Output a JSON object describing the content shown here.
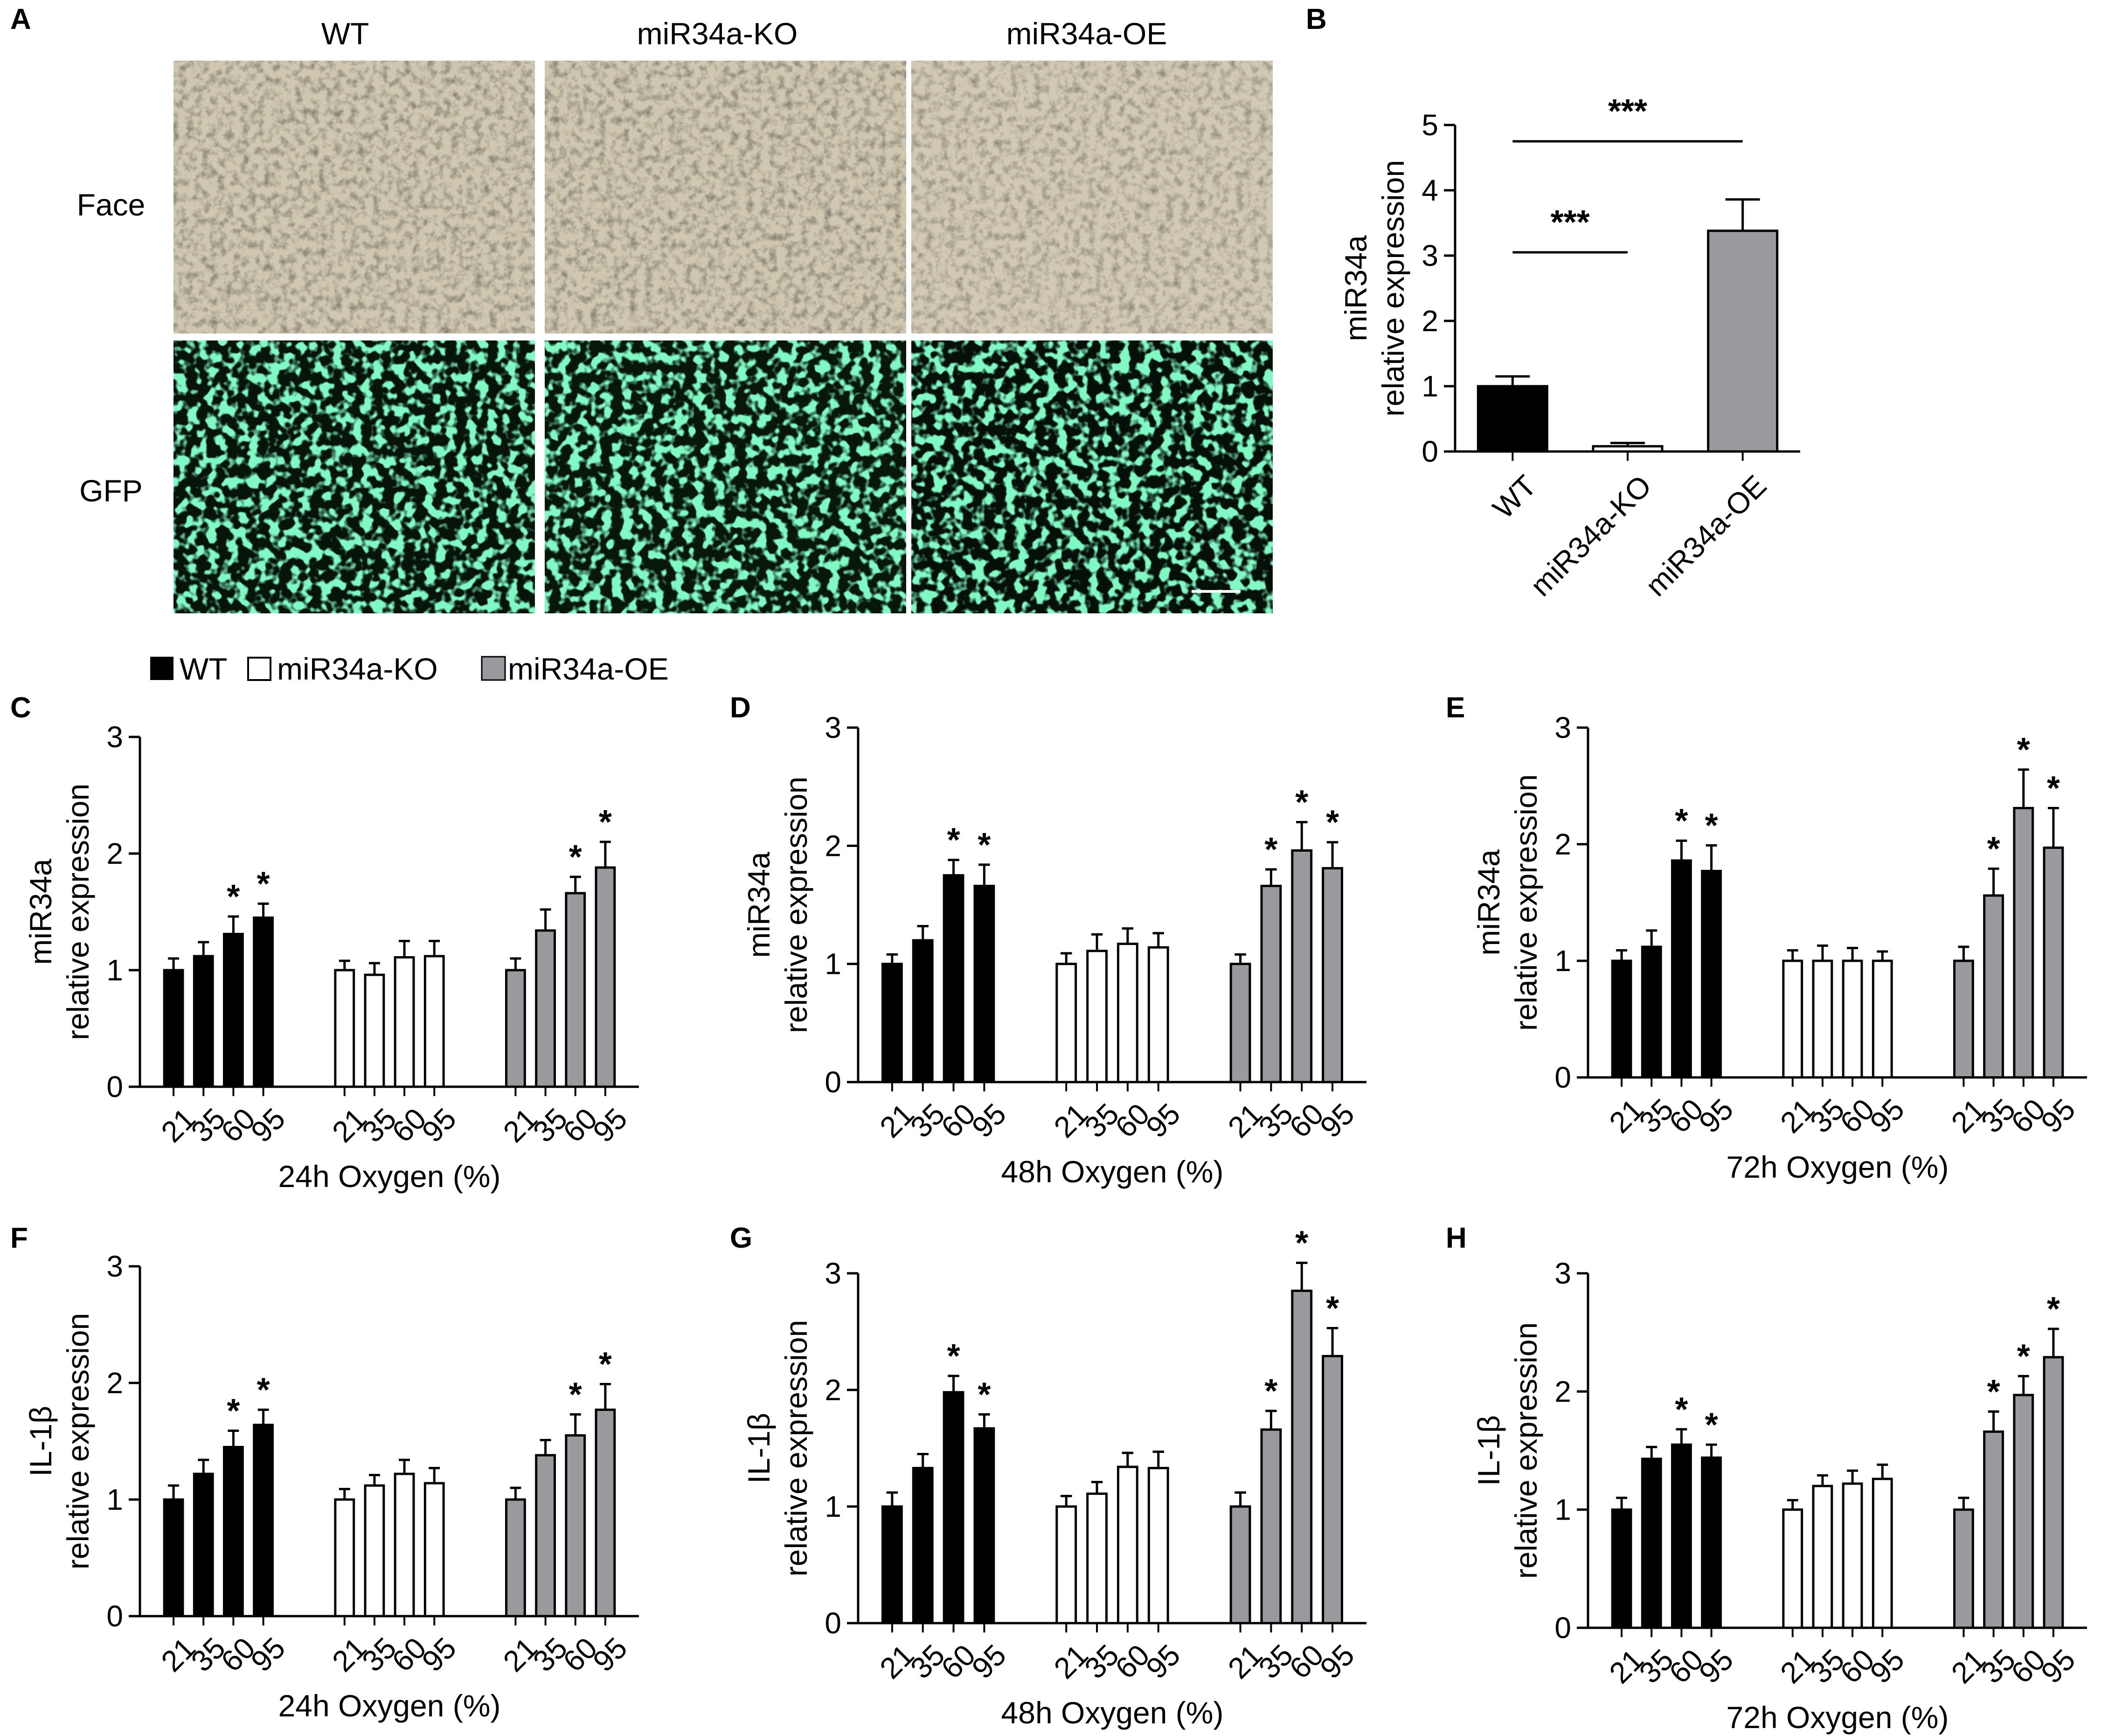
{
  "colors": {
    "WT": "#000000",
    "miR34a-KO": "#ffffff",
    "miR34a-OE": "#9a9a9e"
  },
  "panel_A": {
    "label": "A",
    "columns": [
      "WT",
      "miR34a-KO",
      "miR34a-OE"
    ],
    "rows": [
      "Face",
      "GFP"
    ]
  },
  "legend": {
    "items": [
      "WT",
      "miR34a-KO",
      "miR34a-OE"
    ]
  },
  "chart_data": [
    {
      "id": "B",
      "label": "B",
      "type": "bar",
      "categories": [
        "WT",
        "miR34a-KO",
        "miR34a-OE"
      ],
      "values": [
        1.0,
        0.08,
        3.38
      ],
      "errors": [
        0.15,
        0.05,
        0.48
      ],
      "ylabel": [
        "miR34a",
        "relative expression"
      ],
      "ylim": [
        0,
        5
      ],
      "yticks": [
        "0",
        "1",
        "2",
        "3",
        "4",
        "5"
      ],
      "significance": [
        {
          "from": "WT",
          "to": "miR34a-KO",
          "text": "***"
        },
        {
          "from": "WT",
          "to": "miR34a-OE",
          "text": "***"
        }
      ]
    },
    {
      "id": "C",
      "label": "C",
      "type": "bar",
      "xlabel": "24h Oxygen (%)",
      "ylabel": [
        "miR34a",
        "relative expression"
      ],
      "ylim": [
        0,
        3
      ],
      "yticks": [
        "0",
        "1",
        "2",
        "3"
      ],
      "categories": [
        "21",
        "35",
        "60",
        "95"
      ],
      "series": [
        {
          "name": "WT",
          "values": [
            1.0,
            1.12,
            1.31,
            1.45
          ],
          "errors": [
            0.1,
            0.12,
            0.15,
            0.12
          ],
          "stars": [
            "",
            "",
            "*",
            "*"
          ]
        },
        {
          "name": "miR34a-KO",
          "values": [
            1.0,
            0.96,
            1.11,
            1.12
          ],
          "errors": [
            0.08,
            0.1,
            0.14,
            0.13
          ],
          "stars": [
            "",
            "",
            "",
            ""
          ]
        },
        {
          "name": "miR34a-OE",
          "values": [
            1.0,
            1.34,
            1.66,
            1.88
          ],
          "errors": [
            0.1,
            0.18,
            0.14,
            0.22
          ],
          "stars": [
            "",
            "",
            "*",
            "*"
          ]
        }
      ]
    },
    {
      "id": "D",
      "label": "D",
      "type": "bar",
      "xlabel": "48h Oxygen (%)",
      "ylabel": [
        "miR34a",
        "relative expression"
      ],
      "ylim": [
        0,
        3
      ],
      "yticks": [
        "0",
        "1",
        "2",
        "3"
      ],
      "categories": [
        "21",
        "35",
        "60",
        "95"
      ],
      "series": [
        {
          "name": "WT",
          "values": [
            1.0,
            1.2,
            1.75,
            1.66
          ],
          "errors": [
            0.08,
            0.12,
            0.13,
            0.18
          ],
          "stars": [
            "",
            "",
            "*",
            "*"
          ]
        },
        {
          "name": "miR34a-KO",
          "values": [
            1.0,
            1.11,
            1.17,
            1.14
          ],
          "errors": [
            0.09,
            0.14,
            0.13,
            0.12
          ],
          "stars": [
            "",
            "",
            "",
            ""
          ]
        },
        {
          "name": "miR34a-OE",
          "values": [
            1.0,
            1.66,
            1.96,
            1.81
          ],
          "errors": [
            0.08,
            0.14,
            0.24,
            0.22
          ],
          "stars": [
            "",
            "*",
            "*",
            "*"
          ]
        }
      ]
    },
    {
      "id": "E",
      "label": "E",
      "type": "bar",
      "xlabel": "72h Oxygen (%)",
      "ylabel": [
        "miR34a",
        "relative expression"
      ],
      "ylim": [
        0,
        3
      ],
      "yticks": [
        "0",
        "1",
        "2",
        "3"
      ],
      "categories": [
        "21",
        "35",
        "60",
        "95"
      ],
      "series": [
        {
          "name": "WT",
          "values": [
            1.0,
            1.12,
            1.86,
            1.77
          ],
          "errors": [
            0.09,
            0.14,
            0.17,
            0.22
          ],
          "stars": [
            "",
            "",
            "*",
            "*"
          ]
        },
        {
          "name": "miR34a-KO",
          "values": [
            1.0,
            1.0,
            1.0,
            1.0
          ],
          "errors": [
            0.09,
            0.13,
            0.11,
            0.08
          ],
          "stars": [
            "",
            "",
            "",
            ""
          ]
        },
        {
          "name": "miR34a-OE",
          "values": [
            1.0,
            1.56,
            2.31,
            1.97
          ],
          "errors": [
            0.12,
            0.23,
            0.33,
            0.34
          ],
          "stars": [
            "",
            "*",
            "*",
            "*"
          ]
        }
      ]
    },
    {
      "id": "F",
      "label": "F",
      "type": "bar",
      "xlabel": "24h Oxygen (%)",
      "ylabel": [
        "IL-1β",
        "relative expression"
      ],
      "ylim": [
        0,
        3
      ],
      "yticks": [
        "0",
        "1",
        "2",
        "3"
      ],
      "categories": [
        "21",
        "35",
        "60",
        "95"
      ],
      "series": [
        {
          "name": "WT",
          "values": [
            1.0,
            1.22,
            1.45,
            1.64
          ],
          "errors": [
            0.12,
            0.12,
            0.14,
            0.13
          ],
          "stars": [
            "",
            "",
            "*",
            "*"
          ]
        },
        {
          "name": "miR34a-KO",
          "values": [
            1.0,
            1.12,
            1.22,
            1.14
          ],
          "errors": [
            0.09,
            0.09,
            0.12,
            0.13
          ],
          "stars": [
            "",
            "",
            "",
            ""
          ]
        },
        {
          "name": "miR34a-OE",
          "values": [
            1.0,
            1.38,
            1.55,
            1.77
          ],
          "errors": [
            0.1,
            0.13,
            0.18,
            0.22
          ],
          "stars": [
            "",
            "",
            "*",
            "*"
          ]
        }
      ]
    },
    {
      "id": "G",
      "label": "G",
      "type": "bar",
      "xlabel": "48h Oxygen (%)",
      "ylabel": [
        "IL-1β",
        "relative expression"
      ],
      "ylim": [
        0,
        3
      ],
      "yticks": [
        "0",
        "1",
        "2",
        "3"
      ],
      "categories": [
        "21",
        "35",
        "60",
        "95"
      ],
      "series": [
        {
          "name": "WT",
          "values": [
            1.0,
            1.33,
            1.98,
            1.67
          ],
          "errors": [
            0.12,
            0.12,
            0.14,
            0.12
          ],
          "stars": [
            "",
            "",
            "*",
            "*"
          ]
        },
        {
          "name": "miR34a-KO",
          "values": [
            1.0,
            1.11,
            1.34,
            1.33
          ],
          "errors": [
            0.09,
            0.1,
            0.12,
            0.14
          ],
          "stars": [
            "",
            "",
            "",
            ""
          ]
        },
        {
          "name": "miR34a-OE",
          "values": [
            1.0,
            1.66,
            2.85,
            2.29
          ],
          "errors": [
            0.12,
            0.16,
            0.24,
            0.24
          ],
          "stars": [
            "",
            "*",
            "*",
            "*"
          ]
        }
      ]
    },
    {
      "id": "H",
      "label": "H",
      "type": "bar",
      "xlabel": "72h Oxygen (%)",
      "ylabel": [
        "IL-1β",
        "relative expression"
      ],
      "ylim": [
        0,
        3
      ],
      "yticks": [
        "0",
        "1",
        "2",
        "3"
      ],
      "categories": [
        "21",
        "35",
        "60",
        "95"
      ],
      "series": [
        {
          "name": "WT",
          "values": [
            1.0,
            1.43,
            1.55,
            1.44
          ],
          "errors": [
            0.1,
            0.1,
            0.13,
            0.11
          ],
          "stars": [
            "",
            "",
            "*",
            "*"
          ]
        },
        {
          "name": "miR34a-KO",
          "values": [
            1.0,
            1.2,
            1.22,
            1.26
          ],
          "errors": [
            0.08,
            0.09,
            0.11,
            0.12
          ],
          "stars": [
            "",
            "",
            "",
            ""
          ]
        },
        {
          "name": "miR34a-OE",
          "values": [
            1.0,
            1.66,
            1.97,
            2.29
          ],
          "errors": [
            0.1,
            0.17,
            0.16,
            0.24
          ],
          "stars": [
            "",
            "*",
            "*",
            "*"
          ]
        }
      ]
    }
  ]
}
